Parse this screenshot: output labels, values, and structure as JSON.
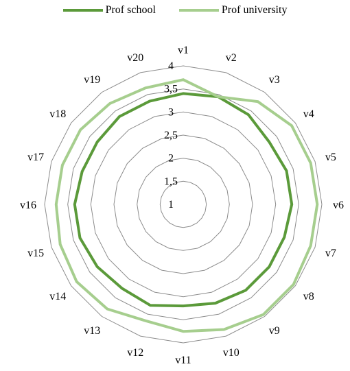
{
  "chart_data": {
    "type": "radar",
    "categories": [
      "v1",
      "v2",
      "v3",
      "v4",
      "v5",
      "v6",
      "v7",
      "v8",
      "v9",
      "v10",
      "v11",
      "v12",
      "v13",
      "v14",
      "v15",
      "v16",
      "v17",
      "v18",
      "v19",
      "v20"
    ],
    "rlim": [
      1,
      4
    ],
    "ticks": [
      "1",
      "1,5",
      "2",
      "2,5",
      "3",
      "3,5",
      "4"
    ],
    "tick_values": [
      1,
      1.5,
      2,
      2.5,
      3,
      3.5,
      4
    ],
    "grid": true,
    "legend_position": "top",
    "series": [
      {
        "name": "Prof school",
        "color": "#5B9A3A",
        "values": [
          3.4,
          3.45,
          3.4,
          3.3,
          3.35,
          3.35,
          3.3,
          3.3,
          3.3,
          3.25,
          3.2,
          3.3,
          3.25,
          3.3,
          3.35,
          3.35,
          3.3,
          3.3,
          3.35,
          3.35
        ]
      },
      {
        "name": "Prof university",
        "color": "#A6CE8E",
        "values": [
          3.7,
          3.45,
          3.75,
          3.9,
          3.9,
          3.9,
          3.9,
          3.95,
          3.95,
          3.85,
          3.75,
          3.65,
          3.8,
          3.85,
          3.8,
          3.75,
          3.75,
          3.75,
          3.7,
          3.65
        ]
      }
    ]
  }
}
